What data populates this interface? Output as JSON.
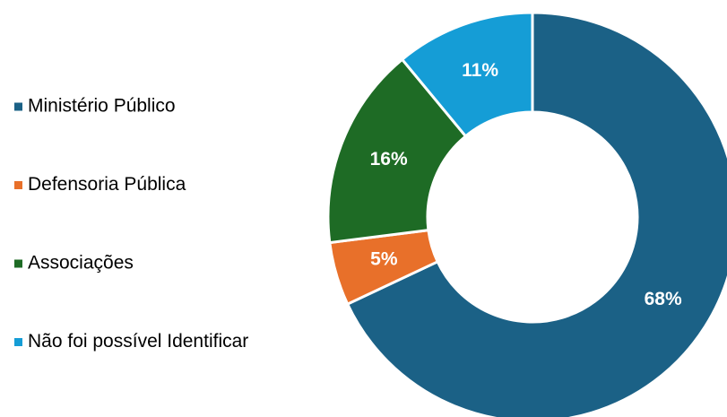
{
  "chart_data": {
    "type": "pie",
    "categories": [
      "Ministério Público",
      "Defensoria Pública",
      "Associações",
      "Não foi possível Identificar"
    ],
    "values": [
      68,
      5,
      16,
      11
    ],
    "value_labels": [
      "68%",
      "5%",
      "16%",
      "11%"
    ],
    "colors": [
      "#1b6186",
      "#e8702a",
      "#1e6b25",
      "#159dd6"
    ],
    "legend": "left"
  }
}
